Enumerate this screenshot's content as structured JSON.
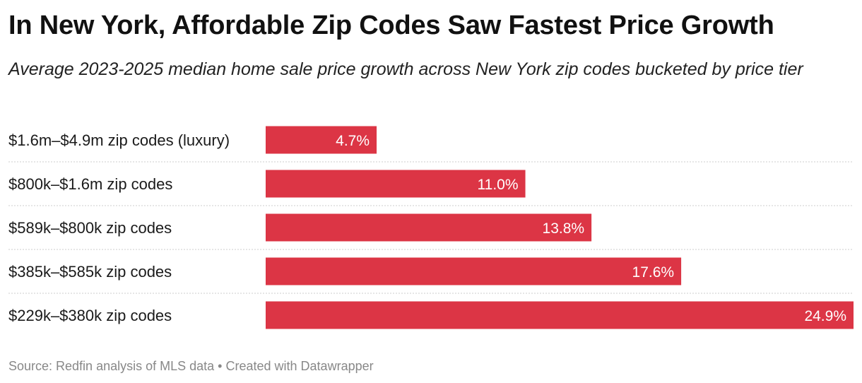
{
  "title": "In New York, Affordable Zip Codes Saw Fastest Price Growth",
  "subtitle": "Average 2023-2025 median home sale price growth across New York zip codes bucketed by price tier",
  "footer": {
    "source": "Source: Redfin analysis of MLS data",
    "separator": "•",
    "credit": "Created with Datawrapper"
  },
  "colors": {
    "bar": "#dc3545",
    "label_on_bar": "#ffffff",
    "divider": "#cccccc"
  },
  "chart_data": {
    "type": "bar",
    "orientation": "horizontal",
    "categories": [
      "$1.6m–$4.9m zip codes (luxury)",
      "$800k–$1.6m zip codes",
      "$589k–$800k zip codes",
      "$385k–$585k zip codes",
      "$229k–$380k zip codes"
    ],
    "values": [
      4.7,
      11.0,
      13.8,
      17.6,
      24.9
    ],
    "value_labels": [
      "4.7%",
      "11.0%",
      "13.8%",
      "17.6%",
      "24.9%"
    ],
    "value_unit": "%",
    "xlim": [
      0,
      24.9
    ],
    "grid": false,
    "legend": "none"
  }
}
